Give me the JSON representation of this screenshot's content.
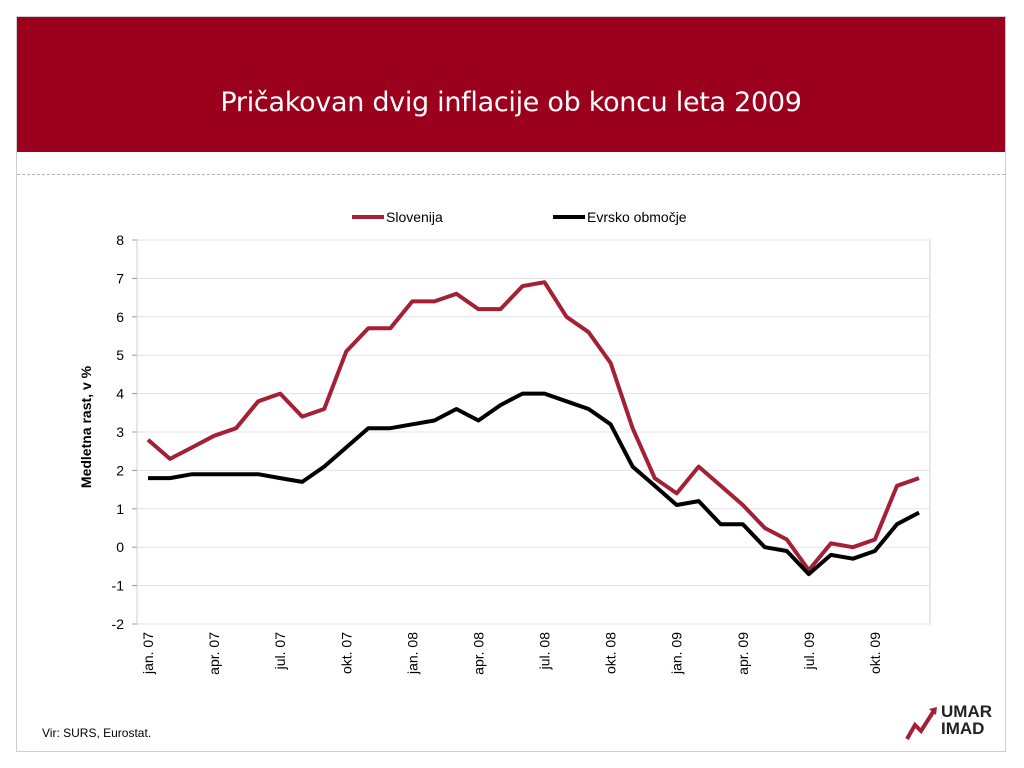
{
  "slide": {
    "title": "Pričakovan dvig inflacije ob koncu leta 2009",
    "source": "Vir: SURS, Eurostat.",
    "logo_line1": "UMAR",
    "logo_line2": "IMAD"
  },
  "colors": {
    "header": "#9b001c",
    "slovenija": "#a32035",
    "evro": "#000000"
  },
  "chart_data": {
    "type": "line",
    "title": "",
    "xlabel": "",
    "ylabel": "Medletna rast, v %",
    "ylim": [
      -2,
      8
    ],
    "yticks": [
      "8",
      "7",
      "6",
      "5",
      "4",
      "3",
      "2",
      "1",
      "0",
      "-1",
      "-2"
    ],
    "grid": true,
    "legend_position": "top",
    "x": [
      "jan. 07",
      "feb. 07",
      "mar. 07",
      "apr. 07",
      "maj 07",
      "jun. 07",
      "jul. 07",
      "avg. 07",
      "sep. 07",
      "okt. 07",
      "nov. 07",
      "dec. 07",
      "jan. 08",
      "feb. 08",
      "mar. 08",
      "apr. 08",
      "maj 08",
      "jun. 08",
      "jul. 08",
      "avg. 08",
      "sep. 08",
      "okt. 08",
      "nov. 08",
      "dec. 08",
      "jan. 09",
      "feb. 09",
      "mar. 09",
      "apr. 09",
      "maj 09",
      "jun. 09",
      "jul. 09",
      "avg. 09",
      "sep. 09",
      "okt. 09",
      "nov. 09",
      "dec. 09"
    ],
    "tick_labels": [
      {
        "index": 0,
        "label": "jan. 07"
      },
      {
        "index": 3,
        "label": "apr. 07"
      },
      {
        "index": 6,
        "label": "jul. 07"
      },
      {
        "index": 9,
        "label": "okt. 07"
      },
      {
        "index": 12,
        "label": "jan. 08"
      },
      {
        "index": 15,
        "label": "apr. 08"
      },
      {
        "index": 18,
        "label": "jul. 08"
      },
      {
        "index": 21,
        "label": "okt. 08"
      },
      {
        "index": 24,
        "label": "jan. 09"
      },
      {
        "index": 27,
        "label": "apr. 09"
      },
      {
        "index": 30,
        "label": "jul. 09"
      },
      {
        "index": 33,
        "label": "okt. 09"
      }
    ],
    "series": [
      {
        "name": "Slovenija",
        "color": "#a32035",
        "values": [
          2.8,
          2.3,
          2.6,
          2.9,
          3.1,
          3.8,
          4.0,
          3.4,
          3.6,
          5.1,
          5.7,
          5.7,
          6.4,
          6.4,
          6.6,
          6.2,
          6.2,
          6.8,
          6.9,
          6.0,
          5.6,
          4.8,
          3.1,
          1.8,
          1.4,
          2.1,
          1.6,
          1.1,
          0.5,
          0.2,
          -0.6,
          0.1,
          0.0,
          0.2,
          1.6,
          1.8
        ]
      },
      {
        "name": "Evrsko območje",
        "color": "#000000",
        "values": [
          1.8,
          1.8,
          1.9,
          1.9,
          1.9,
          1.9,
          1.8,
          1.7,
          2.1,
          2.6,
          3.1,
          3.1,
          3.2,
          3.3,
          3.6,
          3.3,
          3.7,
          4.0,
          4.0,
          3.8,
          3.6,
          3.2,
          2.1,
          1.6,
          1.1,
          1.2,
          0.6,
          0.6,
          0.0,
          -0.1,
          -0.7,
          -0.2,
          -0.3,
          -0.1,
          0.6,
          0.9
        ]
      }
    ]
  }
}
